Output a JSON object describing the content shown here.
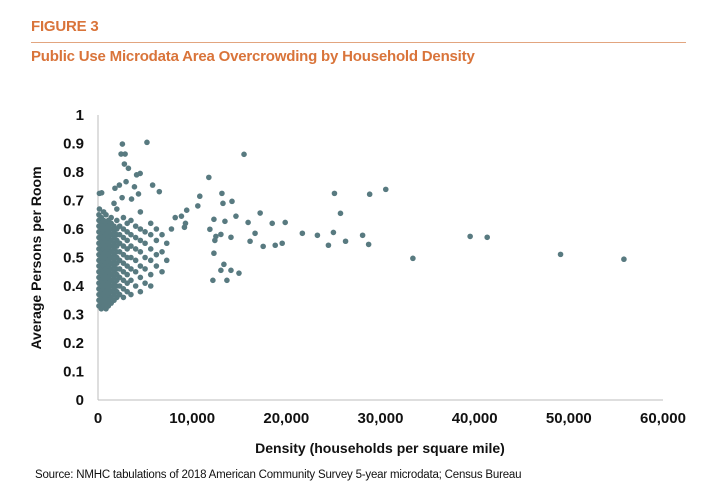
{
  "header": {
    "figure_label": "FIGURE 3",
    "title": "Public Use Microdata Area Overcrowding by Household Density",
    "accent_color": "#d9743a"
  },
  "source": "Source: NMHC tabulations of 2018 American Community Survey 5-year microdata; Census Bureau",
  "chart_data": {
    "type": "scatter",
    "title": "Public Use Microdata Area Overcrowding by Household Density",
    "xlabel": "Density (households per square mile)",
    "ylabel": "Average Persons per Room",
    "xlim": [
      0,
      60000
    ],
    "ylim": [
      0,
      1
    ],
    "x_ticks": [
      "0",
      "10,000",
      "20,000",
      "30,000",
      "40,000",
      "50,000",
      "60,000"
    ],
    "y_ticks": [
      "0",
      "0.1",
      "0.2",
      "0.3",
      "0.4",
      "0.5",
      "0.6",
      "0.7",
      "0.8",
      "0.9",
      "1"
    ],
    "grid": false,
    "legend": "none",
    "marker_color": "#587a80",
    "points": [
      [
        100,
        0.33
      ],
      [
        100,
        0.35
      ],
      [
        100,
        0.37
      ],
      [
        100,
        0.39
      ],
      [
        100,
        0.41
      ],
      [
        100,
        0.43
      ],
      [
        100,
        0.45
      ],
      [
        100,
        0.47
      ],
      [
        100,
        0.49
      ],
      [
        100,
        0.51
      ],
      [
        100,
        0.53
      ],
      [
        100,
        0.55
      ],
      [
        100,
        0.57
      ],
      [
        100,
        0.59
      ],
      [
        100,
        0.61
      ],
      [
        100,
        0.63
      ],
      [
        100,
        0.65
      ],
      [
        150,
        0.67
      ],
      [
        150,
        0.725
      ],
      [
        390,
        0.727
      ],
      [
        350,
        0.32
      ],
      [
        350,
        0.34
      ],
      [
        350,
        0.36
      ],
      [
        350,
        0.38
      ],
      [
        350,
        0.4
      ],
      [
        350,
        0.42
      ],
      [
        350,
        0.44
      ],
      [
        350,
        0.46
      ],
      [
        350,
        0.48
      ],
      [
        350,
        0.5
      ],
      [
        350,
        0.52
      ],
      [
        350,
        0.54
      ],
      [
        350,
        0.56
      ],
      [
        350,
        0.58
      ],
      [
        350,
        0.6
      ],
      [
        350,
        0.62
      ],
      [
        350,
        0.64
      ],
      [
        600,
        0.33
      ],
      [
        600,
        0.35
      ],
      [
        600,
        0.37
      ],
      [
        600,
        0.39
      ],
      [
        600,
        0.41
      ],
      [
        600,
        0.43
      ],
      [
        600,
        0.45
      ],
      [
        600,
        0.47
      ],
      [
        600,
        0.49
      ],
      [
        600,
        0.51
      ],
      [
        600,
        0.53
      ],
      [
        600,
        0.55
      ],
      [
        600,
        0.57
      ],
      [
        600,
        0.59
      ],
      [
        600,
        0.61
      ],
      [
        600,
        0.63
      ],
      [
        600,
        0.66
      ],
      [
        850,
        0.32
      ],
      [
        850,
        0.34
      ],
      [
        850,
        0.36
      ],
      [
        850,
        0.38
      ],
      [
        850,
        0.4
      ],
      [
        850,
        0.42
      ],
      [
        850,
        0.44
      ],
      [
        850,
        0.46
      ],
      [
        850,
        0.48
      ],
      [
        850,
        0.5
      ],
      [
        850,
        0.52
      ],
      [
        850,
        0.54
      ],
      [
        850,
        0.56
      ],
      [
        850,
        0.58
      ],
      [
        850,
        0.6
      ],
      [
        850,
        0.62
      ],
      [
        850,
        0.65
      ],
      [
        1100,
        0.33
      ],
      [
        1100,
        0.35
      ],
      [
        1100,
        0.37
      ],
      [
        1100,
        0.39
      ],
      [
        1100,
        0.41
      ],
      [
        1100,
        0.43
      ],
      [
        1100,
        0.45
      ],
      [
        1100,
        0.47
      ],
      [
        1100,
        0.49
      ],
      [
        1100,
        0.51
      ],
      [
        1100,
        0.53
      ],
      [
        1100,
        0.55
      ],
      [
        1100,
        0.57
      ],
      [
        1100,
        0.59
      ],
      [
        1100,
        0.61
      ],
      [
        1100,
        0.63
      ],
      [
        1400,
        0.34
      ],
      [
        1400,
        0.36
      ],
      [
        1400,
        0.38
      ],
      [
        1400,
        0.4
      ],
      [
        1400,
        0.42
      ],
      [
        1400,
        0.44
      ],
      [
        1400,
        0.46
      ],
      [
        1400,
        0.48
      ],
      [
        1400,
        0.5
      ],
      [
        1400,
        0.52
      ],
      [
        1400,
        0.54
      ],
      [
        1400,
        0.56
      ],
      [
        1400,
        0.58
      ],
      [
        1400,
        0.6
      ],
      [
        1400,
        0.62
      ],
      [
        1400,
        0.64
      ],
      [
        1700,
        0.35
      ],
      [
        1700,
        0.37
      ],
      [
        1700,
        0.39
      ],
      [
        1700,
        0.41
      ],
      [
        1700,
        0.43
      ],
      [
        1700,
        0.45
      ],
      [
        1700,
        0.47
      ],
      [
        1700,
        0.49
      ],
      [
        1700,
        0.51
      ],
      [
        1700,
        0.53
      ],
      [
        1700,
        0.55
      ],
      [
        1700,
        0.57
      ],
      [
        1700,
        0.59
      ],
      [
        1700,
        0.61
      ],
      [
        1700,
        0.69
      ],
      [
        2000,
        0.36
      ],
      [
        2000,
        0.38
      ],
      [
        2000,
        0.4
      ],
      [
        2000,
        0.42
      ],
      [
        2000,
        0.44
      ],
      [
        2000,
        0.46
      ],
      [
        2000,
        0.48
      ],
      [
        2000,
        0.5
      ],
      [
        2000,
        0.52
      ],
      [
        2000,
        0.54
      ],
      [
        2000,
        0.56
      ],
      [
        2000,
        0.58
      ],
      [
        2000,
        0.6
      ],
      [
        2000,
        0.63
      ],
      [
        2000,
        0.67
      ],
      [
        2300,
        0.37
      ],
      [
        2300,
        0.4
      ],
      [
        2300,
        0.43
      ],
      [
        2300,
        0.46
      ],
      [
        2300,
        0.49
      ],
      [
        2300,
        0.52
      ],
      [
        2300,
        0.55
      ],
      [
        2300,
        0.58
      ],
      [
        2300,
        0.61
      ],
      [
        2270,
        0.754
      ],
      [
        1800,
        0.743
      ],
      [
        2700,
        0.36
      ],
      [
        2700,
        0.39
      ],
      [
        2700,
        0.42
      ],
      [
        2700,
        0.45
      ],
      [
        2700,
        0.48
      ],
      [
        2700,
        0.51
      ],
      [
        2700,
        0.54
      ],
      [
        2700,
        0.57
      ],
      [
        2700,
        0.6
      ],
      [
        2700,
        0.64
      ],
      [
        2560,
        0.71
      ],
      [
        3100,
        0.38
      ],
      [
        3100,
        0.41
      ],
      [
        3100,
        0.44
      ],
      [
        3100,
        0.47
      ],
      [
        3100,
        0.5
      ],
      [
        3100,
        0.53
      ],
      [
        3100,
        0.56
      ],
      [
        3100,
        0.59
      ],
      [
        3100,
        0.62
      ],
      [
        3560,
        0.705
      ],
      [
        2980,
        0.766
      ],
      [
        3500,
        0.37
      ],
      [
        3500,
        0.42
      ],
      [
        3500,
        0.46
      ],
      [
        3500,
        0.5
      ],
      [
        3500,
        0.54
      ],
      [
        3500,
        0.58
      ],
      [
        3500,
        0.63
      ],
      [
        3870,
        0.748
      ],
      [
        4000,
        0.4
      ],
      [
        4000,
        0.45
      ],
      [
        4000,
        0.49
      ],
      [
        4000,
        0.53
      ],
      [
        4000,
        0.57
      ],
      [
        4000,
        0.61
      ],
      [
        4300,
        0.723
      ],
      [
        4100,
        0.79
      ],
      [
        4480,
        0.795
      ],
      [
        4500,
        0.38
      ],
      [
        4500,
        0.43
      ],
      [
        4500,
        0.47
      ],
      [
        4500,
        0.52
      ],
      [
        4500,
        0.56
      ],
      [
        4500,
        0.6
      ],
      [
        4500,
        0.66
      ],
      [
        5000,
        0.41
      ],
      [
        5000,
        0.46
      ],
      [
        5000,
        0.5
      ],
      [
        5000,
        0.55
      ],
      [
        5000,
        0.59
      ],
      [
        5800,
        0.754
      ],
      [
        6510,
        0.731
      ],
      [
        5600,
        0.4
      ],
      [
        5600,
        0.44
      ],
      [
        5600,
        0.49
      ],
      [
        5600,
        0.53
      ],
      [
        5600,
        0.58
      ],
      [
        5600,
        0.62
      ],
      [
        6200,
        0.47
      ],
      [
        6200,
        0.51
      ],
      [
        6200,
        0.56
      ],
      [
        6200,
        0.6
      ],
      [
        6800,
        0.45
      ],
      [
        6800,
        0.52
      ],
      [
        6800,
        0.58
      ],
      [
        7300,
        0.49
      ],
      [
        7300,
        0.55
      ],
      [
        7800,
        0.6
      ],
      [
        8200,
        0.64
      ],
      [
        2590,
        0.898
      ],
      [
        5200,
        0.904
      ],
      [
        2450,
        0.863
      ],
      [
        2880,
        0.863
      ],
      [
        2800,
        0.828
      ],
      [
        3230,
        0.813
      ],
      [
        15507,
        0.862
      ],
      [
        11770,
        0.781
      ],
      [
        13160,
        0.725
      ],
      [
        10810,
        0.715
      ],
      [
        13270,
        0.69
      ],
      [
        14230,
        0.697
      ],
      [
        10600,
        0.681
      ],
      [
        9420,
        0.666
      ],
      [
        8860,
        0.645
      ],
      [
        17220,
        0.656
      ],
      [
        14650,
        0.645
      ],
      [
        12310,
        0.634
      ],
      [
        13480,
        0.627
      ],
      [
        15940,
        0.623
      ],
      [
        18500,
        0.62
      ],
      [
        19880,
        0.623
      ],
      [
        9290,
        0.62
      ],
      [
        9180,
        0.606
      ],
      [
        11880,
        0.599
      ],
      [
        25110,
        0.725
      ],
      [
        28850,
        0.722
      ],
      [
        30560,
        0.739
      ],
      [
        25750,
        0.655
      ],
      [
        21700,
        0.585
      ],
      [
        23300,
        0.578
      ],
      [
        25000,
        0.588
      ],
      [
        28100,
        0.578
      ],
      [
        24470,
        0.543
      ],
      [
        26290,
        0.557
      ],
      [
        28740,
        0.546
      ],
      [
        39520,
        0.574
      ],
      [
        41330,
        0.571
      ],
      [
        33440,
        0.497
      ],
      [
        49120,
        0.511
      ],
      [
        55850,
        0.494
      ],
      [
        13050,
        0.581
      ],
      [
        12520,
        0.574
      ],
      [
        12410,
        0.56
      ],
      [
        14120,
        0.571
      ],
      [
        16680,
        0.585
      ],
      [
        16150,
        0.557
      ],
      [
        17540,
        0.539
      ],
      [
        18820,
        0.543
      ],
      [
        19560,
        0.55
      ],
      [
        12310,
        0.515
      ],
      [
        13370,
        0.476
      ],
      [
        13050,
        0.455
      ],
      [
        14120,
        0.455
      ],
      [
        14970,
        0.445
      ],
      [
        12200,
        0.42
      ],
      [
        13690,
        0.42
      ]
    ]
  }
}
